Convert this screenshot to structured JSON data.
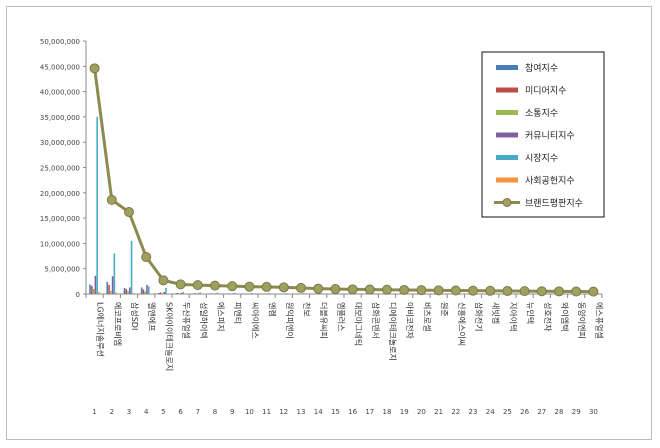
{
  "chart_data": {
    "type": "bar",
    "title": "",
    "xlabel": "",
    "ylabel": "",
    "ylim": [
      0,
      50000000
    ],
    "y_ticks": [
      "0",
      "5,000,000",
      "10,000,000",
      "15,000,000",
      "20,000,000",
      "25,000,000",
      "30,000,000",
      "35,000,000",
      "40,000,000",
      "45,000,000",
      "50,000,000"
    ],
    "categories": [
      "LG에너지솔루션",
      "에코프로비엠",
      "삼성SDI",
      "엘앤에프",
      "SK아이이테크놀로지",
      "두산퓨얼셀",
      "성일하이텍",
      "에스피지",
      "피엔티",
      "씨아이에스",
      "엔켐",
      "원익피앤이",
      "천보",
      "더블유씨피",
      "엠플러스",
      "대보마그네틱",
      "삼화콘덴서",
      "디에이테크놀로지",
      "아비코전자",
      "비츠로셀",
      "원준",
      "신흥에스이씨",
      "삼화전기",
      "새빗켐",
      "지아이텍",
      "뉴인텍",
      "성호전자",
      "와이엠텍",
      "동양이엔피",
      "에스퓨얼셀"
    ],
    "ranks": [
      "1",
      "2",
      "3",
      "4",
      "5",
      "6",
      "7",
      "8",
      "9",
      "10",
      "11",
      "12",
      "13",
      "14",
      "15",
      "16",
      "17",
      "18",
      "19",
      "20",
      "21",
      "22",
      "23",
      "24",
      "25",
      "26",
      "27",
      "28",
      "29",
      "30"
    ],
    "grid": false,
    "legend_position": "right",
    "series": [
      {
        "name": "참여지수",
        "type": "bar",
        "color": "#4a7ebb",
        "values": [
          1900000,
          2400000,
          1200000,
          1300000,
          200000,
          130000,
          100000,
          90000,
          80000,
          80000,
          70000,
          70000,
          70000,
          60000,
          60000,
          60000,
          50000,
          50000,
          50000,
          50000,
          40000,
          40000,
          40000,
          40000,
          40000,
          30000,
          30000,
          30000,
          30000,
          30000
        ]
      },
      {
        "name": "미디어지수",
        "type": "bar",
        "color": "#be4b48",
        "values": [
          1600000,
          1800000,
          1000000,
          900000,
          300000,
          200000,
          150000,
          120000,
          110000,
          100000,
          100000,
          90000,
          90000,
          80000,
          80000,
          70000,
          70000,
          60000,
          60000,
          60000,
          50000,
          50000,
          50000,
          40000,
          40000,
          40000,
          40000,
          30000,
          30000,
          30000
        ]
      },
      {
        "name": "소통지수",
        "type": "bar",
        "color": "#98b954",
        "values": [
          1000000,
          600000,
          600000,
          500000,
          150000,
          90000,
          80000,
          70000,
          60000,
          60000,
          50000,
          50000,
          50000,
          40000,
          40000,
          40000,
          40000,
          30000,
          30000,
          30000,
          30000,
          30000,
          30000,
          20000,
          20000,
          20000,
          20000,
          20000,
          20000,
          20000
        ]
      },
      {
        "name": "커뮤니티지수",
        "type": "bar",
        "color": "#7d60a0",
        "values": [
          3600000,
          3500000,
          1300000,
          1800000,
          400000,
          200000,
          150000,
          120000,
          110000,
          100000,
          100000,
          90000,
          90000,
          80000,
          80000,
          70000,
          70000,
          60000,
          60000,
          60000,
          50000,
          50000,
          50000,
          50000,
          40000,
          40000,
          40000,
          40000,
          30000,
          30000
        ]
      },
      {
        "name": "시장지수",
        "type": "bar",
        "color": "#46aac5",
        "values": [
          35000000,
          8000000,
          10500000,
          1500000,
          1200000,
          400000,
          300000,
          250000,
          200000,
          200000,
          180000,
          170000,
          160000,
          150000,
          140000,
          130000,
          120000,
          110000,
          100000,
          100000,
          90000,
          90000,
          80000,
          80000,
          70000,
          70000,
          60000,
          60000,
          60000,
          50000
        ]
      },
      {
        "name": "사회공헌지수",
        "type": "bar",
        "color": "#f69240",
        "values": [
          400000,
          300000,
          200000,
          100000,
          80000,
          50000,
          40000,
          40000,
          30000,
          30000,
          30000,
          30000,
          20000,
          20000,
          20000,
          20000,
          20000,
          20000,
          20000,
          10000,
          10000,
          10000,
          10000,
          10000,
          10000,
          10000,
          10000,
          10000,
          10000,
          10000
        ]
      },
      {
        "name": "브랜드평판지수",
        "type": "line",
        "color": "#8c8a4e",
        "values": [
          44600000,
          18600000,
          16200000,
          7300000,
          2700000,
          1900000,
          1750000,
          1650000,
          1550000,
          1450000,
          1400000,
          1320000,
          1200000,
          1050000,
          980000,
          920000,
          880000,
          840000,
          800000,
          760000,
          720000,
          690000,
          660000,
          630000,
          600000,
          570000,
          540000,
          510000,
          490000,
          470000
        ]
      }
    ]
  }
}
